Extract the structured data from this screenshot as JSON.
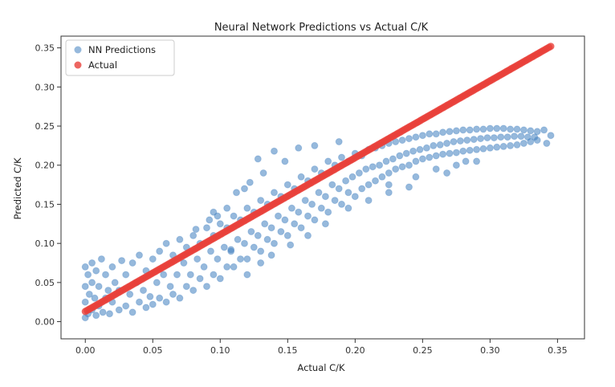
{
  "chart_data": {
    "type": "scatter",
    "title": "Neural Network Predictions vs Actual C/K",
    "xlabel": "Actual C/K",
    "ylabel": "Predicted C/K",
    "xlim": [
      -0.018,
      0.37
    ],
    "ylim": [
      -0.022,
      0.365
    ],
    "x_ticks": [
      "0.00",
      "0.05",
      "0.10",
      "0.15",
      "0.20",
      "0.25",
      "0.30",
      "0.35"
    ],
    "y_ticks": [
      "0.00",
      "0.05",
      "0.10",
      "0.15",
      "0.20",
      "0.25",
      "0.30",
      "0.35"
    ],
    "grid": false,
    "legend_position": "upper-left",
    "series": [
      {
        "name": "NN Predictions",
        "color": "#3f7fbf",
        "marker": "circle",
        "alpha": 0.55,
        "points": [
          [
            0.0,
            0.005
          ],
          [
            0.0,
            0.025
          ],
          [
            0.0,
            0.045
          ],
          [
            0.0,
            0.07
          ],
          [
            0.002,
            0.01
          ],
          [
            0.002,
            0.06
          ],
          [
            0.003,
            0.035
          ],
          [
            0.005,
            0.015
          ],
          [
            0.005,
            0.05
          ],
          [
            0.005,
            0.075
          ],
          [
            0.007,
            0.03
          ],
          [
            0.008,
            0.008
          ],
          [
            0.008,
            0.065
          ],
          [
            0.01,
            0.02
          ],
          [
            0.01,
            0.045
          ],
          [
            0.012,
            0.08
          ],
          [
            0.013,
            0.012
          ],
          [
            0.015,
            0.03
          ],
          [
            0.015,
            0.06
          ],
          [
            0.017,
            0.04
          ],
          [
            0.018,
            0.01
          ],
          [
            0.02,
            0.025
          ],
          [
            0.02,
            0.07
          ],
          [
            0.022,
            0.05
          ],
          [
            0.025,
            0.015
          ],
          [
            0.025,
            0.04
          ],
          [
            0.027,
            0.078
          ],
          [
            0.03,
            0.02
          ],
          [
            0.03,
            0.06
          ],
          [
            0.033,
            0.035
          ],
          [
            0.035,
            0.012
          ],
          [
            0.035,
            0.075
          ],
          [
            0.038,
            0.05
          ],
          [
            0.04,
            0.025
          ],
          [
            0.04,
            0.085
          ],
          [
            0.043,
            0.04
          ],
          [
            0.045,
            0.018
          ],
          [
            0.045,
            0.065
          ],
          [
            0.048,
            0.032
          ],
          [
            0.05,
            0.022
          ],
          [
            0.05,
            0.08
          ],
          [
            0.053,
            0.05
          ],
          [
            0.055,
            0.03
          ],
          [
            0.055,
            0.09
          ],
          [
            0.058,
            0.06
          ],
          [
            0.06,
            0.025
          ],
          [
            0.06,
            0.1
          ],
          [
            0.063,
            0.045
          ],
          [
            0.065,
            0.035
          ],
          [
            0.065,
            0.085
          ],
          [
            0.068,
            0.06
          ],
          [
            0.07,
            0.03
          ],
          [
            0.07,
            0.105
          ],
          [
            0.073,
            0.075
          ],
          [
            0.075,
            0.045
          ],
          [
            0.075,
            0.095
          ],
          [
            0.078,
            0.06
          ],
          [
            0.08,
            0.04
          ],
          [
            0.08,
            0.11
          ],
          [
            0.083,
            0.08
          ],
          [
            0.085,
            0.055
          ],
          [
            0.085,
            0.1
          ],
          [
            0.088,
            0.07
          ],
          [
            0.09,
            0.045
          ],
          [
            0.09,
            0.12
          ],
          [
            0.093,
            0.09
          ],
          [
            0.095,
            0.06
          ],
          [
            0.095,
            0.11
          ],
          [
            0.098,
            0.08
          ],
          [
            0.1,
            0.055
          ],
          [
            0.1,
            0.125
          ],
          [
            0.103,
            0.095
          ],
          [
            0.105,
            0.07
          ],
          [
            0.105,
            0.12
          ],
          [
            0.108,
            0.09
          ],
          [
            0.11,
            0.07
          ],
          [
            0.11,
            0.135
          ],
          [
            0.113,
            0.105
          ],
          [
            0.115,
            0.08
          ],
          [
            0.115,
            0.13
          ],
          [
            0.118,
            0.1
          ],
          [
            0.12,
            0.08
          ],
          [
            0.12,
            0.145
          ],
          [
            0.123,
            0.115
          ],
          [
            0.125,
            0.095
          ],
          [
            0.125,
            0.14
          ],
          [
            0.128,
            0.11
          ],
          [
            0.13,
            0.09
          ],
          [
            0.13,
            0.155
          ],
          [
            0.133,
            0.125
          ],
          [
            0.135,
            0.105
          ],
          [
            0.135,
            0.15
          ],
          [
            0.138,
            0.12
          ],
          [
            0.14,
            0.1
          ],
          [
            0.14,
            0.165
          ],
          [
            0.143,
            0.135
          ],
          [
            0.145,
            0.115
          ],
          [
            0.145,
            0.16
          ],
          [
            0.148,
            0.13
          ],
          [
            0.15,
            0.11
          ],
          [
            0.15,
            0.175
          ],
          [
            0.153,
            0.145
          ],
          [
            0.155,
            0.125
          ],
          [
            0.155,
            0.17
          ],
          [
            0.158,
            0.14
          ],
          [
            0.16,
            0.12
          ],
          [
            0.16,
            0.185
          ],
          [
            0.163,
            0.155
          ],
          [
            0.165,
            0.135
          ],
          [
            0.165,
            0.18
          ],
          [
            0.168,
            0.15
          ],
          [
            0.17,
            0.13
          ],
          [
            0.17,
            0.195
          ],
          [
            0.173,
            0.165
          ],
          [
            0.175,
            0.145
          ],
          [
            0.175,
            0.19
          ],
          [
            0.178,
            0.16
          ],
          [
            0.18,
            0.14
          ],
          [
            0.18,
            0.205
          ],
          [
            0.183,
            0.175
          ],
          [
            0.185,
            0.155
          ],
          [
            0.185,
            0.2
          ],
          [
            0.188,
            0.17
          ],
          [
            0.19,
            0.15
          ],
          [
            0.19,
            0.21
          ],
          [
            0.193,
            0.18
          ],
          [
            0.195,
            0.165
          ],
          [
            0.195,
            0.205
          ],
          [
            0.198,
            0.185
          ],
          [
            0.2,
            0.16
          ],
          [
            0.2,
            0.215
          ],
          [
            0.203,
            0.19
          ],
          [
            0.205,
            0.17
          ],
          [
            0.205,
            0.212
          ],
          [
            0.208,
            0.195
          ],
          [
            0.21,
            0.175
          ],
          [
            0.21,
            0.22
          ],
          [
            0.213,
            0.198
          ],
          [
            0.215,
            0.18
          ],
          [
            0.215,
            0.222
          ],
          [
            0.218,
            0.2
          ],
          [
            0.22,
            0.185
          ],
          [
            0.22,
            0.225
          ],
          [
            0.223,
            0.205
          ],
          [
            0.225,
            0.19
          ],
          [
            0.225,
            0.228
          ],
          [
            0.228,
            0.208
          ],
          [
            0.23,
            0.195
          ],
          [
            0.23,
            0.23
          ],
          [
            0.233,
            0.212
          ],
          [
            0.235,
            0.198
          ],
          [
            0.235,
            0.232
          ],
          [
            0.238,
            0.215
          ],
          [
            0.24,
            0.2
          ],
          [
            0.24,
            0.234
          ],
          [
            0.243,
            0.218
          ],
          [
            0.245,
            0.205
          ],
          [
            0.245,
            0.236
          ],
          [
            0.248,
            0.22
          ],
          [
            0.25,
            0.208
          ],
          [
            0.25,
            0.238
          ],
          [
            0.253,
            0.222
          ],
          [
            0.255,
            0.21
          ],
          [
            0.255,
            0.24
          ],
          [
            0.258,
            0.225
          ],
          [
            0.26,
            0.212
          ],
          [
            0.26,
            0.24
          ],
          [
            0.263,
            0.226
          ],
          [
            0.265,
            0.214
          ],
          [
            0.265,
            0.242
          ],
          [
            0.268,
            0.228
          ],
          [
            0.27,
            0.215
          ],
          [
            0.27,
            0.243
          ],
          [
            0.273,
            0.23
          ],
          [
            0.275,
            0.216
          ],
          [
            0.275,
            0.244
          ],
          [
            0.278,
            0.231
          ],
          [
            0.28,
            0.218
          ],
          [
            0.28,
            0.245
          ],
          [
            0.283,
            0.232
          ],
          [
            0.285,
            0.219
          ],
          [
            0.285,
            0.245
          ],
          [
            0.288,
            0.233
          ],
          [
            0.29,
            0.22
          ],
          [
            0.29,
            0.246
          ],
          [
            0.293,
            0.234
          ],
          [
            0.295,
            0.221
          ],
          [
            0.295,
            0.246
          ],
          [
            0.298,
            0.235
          ],
          [
            0.3,
            0.222
          ],
          [
            0.3,
            0.247
          ],
          [
            0.303,
            0.235
          ],
          [
            0.305,
            0.223
          ],
          [
            0.305,
            0.247
          ],
          [
            0.308,
            0.236
          ],
          [
            0.31,
            0.224
          ],
          [
            0.31,
            0.247
          ],
          [
            0.313,
            0.236
          ],
          [
            0.315,
            0.225
          ],
          [
            0.315,
            0.246
          ],
          [
            0.318,
            0.237
          ],
          [
            0.32,
            0.226
          ],
          [
            0.32,
            0.246
          ],
          [
            0.323,
            0.237
          ],
          [
            0.325,
            0.228
          ],
          [
            0.325,
            0.245
          ],
          [
            0.328,
            0.236
          ],
          [
            0.33,
            0.23
          ],
          [
            0.33,
            0.244
          ],
          [
            0.333,
            0.236
          ],
          [
            0.335,
            0.232
          ],
          [
            0.335,
            0.243
          ],
          [
            0.34,
            0.245
          ],
          [
            0.342,
            0.228
          ],
          [
            0.345,
            0.238
          ],
          [
            0.122,
            0.178
          ],
          [
            0.098,
            0.135
          ],
          [
            0.082,
            0.118
          ],
          [
            0.105,
            0.145
          ],
          [
            0.092,
            0.13
          ],
          [
            0.128,
            0.208
          ],
          [
            0.112,
            0.165
          ],
          [
            0.095,
            0.14
          ],
          [
            0.118,
            0.17
          ],
          [
            0.132,
            0.19
          ],
          [
            0.148,
            0.205
          ],
          [
            0.158,
            0.222
          ],
          [
            0.17,
            0.225
          ],
          [
            0.188,
            0.23
          ],
          [
            0.14,
            0.218
          ],
          [
            0.108,
            0.092
          ],
          [
            0.12,
            0.06
          ],
          [
            0.13,
            0.075
          ],
          [
            0.138,
            0.085
          ],
          [
            0.152,
            0.098
          ],
          [
            0.165,
            0.11
          ],
          [
            0.178,
            0.125
          ],
          [
            0.195,
            0.145
          ],
          [
            0.21,
            0.155
          ],
          [
            0.225,
            0.165
          ],
          [
            0.245,
            0.185
          ],
          [
            0.26,
            0.195
          ],
          [
            0.275,
            0.2
          ],
          [
            0.29,
            0.205
          ],
          [
            0.225,
            0.175
          ],
          [
            0.24,
            0.172
          ],
          [
            0.268,
            0.19
          ],
          [
            0.282,
            0.205
          ]
        ]
      },
      {
        "name": "Actual",
        "color": "#e8403a",
        "marker": "circle",
        "alpha": 0.8,
        "line": {
          "x_start": 0.0,
          "y_start": 0.013,
          "x_end": 0.345,
          "y_end": 0.352
        },
        "band_width": 0.007
      }
    ]
  }
}
